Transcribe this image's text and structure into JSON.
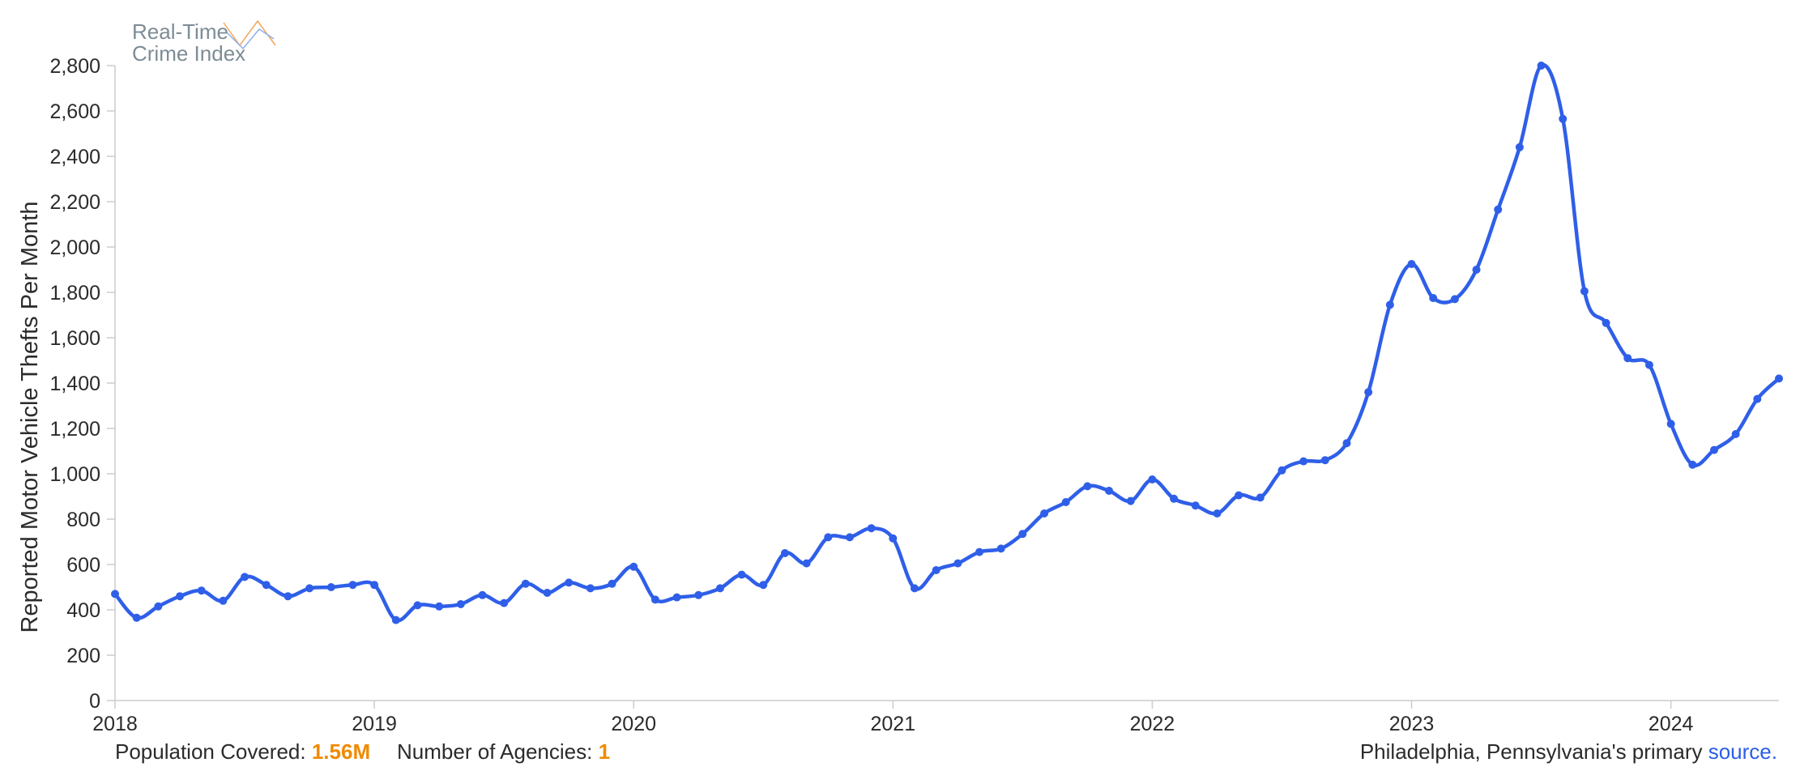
{
  "logo": {
    "line1": "Real-Time",
    "line2": "Crime Index"
  },
  "footer": {
    "population_label": "Population Covered:",
    "population_value": "1.56M",
    "agencies_label": "Number of Agencies:",
    "agencies_value": "1",
    "source_prefix": "Philadelphia, Pennsylvania's primary",
    "source_link": "source",
    "source_suffix": "."
  },
  "chart_data": {
    "type": "line",
    "ylabel": "Reported Motor Vehicle Thefts Per Month",
    "xlabel": "",
    "ylim": [
      0,
      2800
    ],
    "yticks": [
      0,
      200,
      400,
      600,
      800,
      1000,
      1200,
      1400,
      1600,
      1800,
      2000,
      2200,
      2400,
      2600,
      2800
    ],
    "ytick_labels": [
      "0",
      "200",
      "400",
      "600",
      "800",
      "1,000",
      "1,200",
      "1,400",
      "1,600",
      "1,800",
      "2,000",
      "2,200",
      "2,400",
      "2,600",
      "2,800"
    ],
    "xticks": [
      "2018",
      "2019",
      "2020",
      "2021",
      "2022",
      "2023",
      "2024"
    ],
    "grid": false,
    "color": "#2f5fe8",
    "x": [
      "2018-01",
      "2018-02",
      "2018-03",
      "2018-04",
      "2018-05",
      "2018-06",
      "2018-07",
      "2018-08",
      "2018-09",
      "2018-10",
      "2018-11",
      "2018-12",
      "2019-01",
      "2019-02",
      "2019-03",
      "2019-04",
      "2019-05",
      "2019-06",
      "2019-07",
      "2019-08",
      "2019-09",
      "2019-10",
      "2019-11",
      "2019-12",
      "2020-01",
      "2020-02",
      "2020-03",
      "2020-04",
      "2020-05",
      "2020-06",
      "2020-07",
      "2020-08",
      "2020-09",
      "2020-10",
      "2020-11",
      "2020-12",
      "2021-01",
      "2021-02",
      "2021-03",
      "2021-04",
      "2021-05",
      "2021-06",
      "2021-07",
      "2021-08",
      "2021-09",
      "2021-10",
      "2021-11",
      "2021-12",
      "2022-01",
      "2022-02",
      "2022-03",
      "2022-04",
      "2022-05",
      "2022-06",
      "2022-07",
      "2022-08",
      "2022-09",
      "2022-10",
      "2022-11",
      "2022-12",
      "2023-01",
      "2023-02",
      "2023-03",
      "2023-04",
      "2023-05",
      "2023-06",
      "2023-07",
      "2023-08",
      "2023-09",
      "2023-10",
      "2023-11",
      "2023-12",
      "2024-01",
      "2024-02",
      "2024-03",
      "2024-04",
      "2024-05",
      "2024-06"
    ],
    "values": [
      470,
      365,
      415,
      460,
      485,
      440,
      545,
      510,
      460,
      495,
      500,
      510,
      510,
      355,
      420,
      415,
      425,
      465,
      430,
      515,
      475,
      520,
      495,
      515,
      590,
      445,
      455,
      465,
      495,
      555,
      510,
      650,
      605,
      720,
      720,
      760,
      715,
      495,
      575,
      605,
      655,
      670,
      735,
      825,
      875,
      945,
      925,
      880,
      975,
      890,
      860,
      825,
      905,
      895,
      1015,
      1055,
      1060,
      1135,
      1360,
      1745,
      1925,
      1775,
      1770,
      1900,
      2165,
      2440,
      2800,
      2565,
      1805,
      1665,
      1510,
      1480,
      1220,
      1040,
      1105,
      1175,
      1330,
      1420
    ]
  }
}
